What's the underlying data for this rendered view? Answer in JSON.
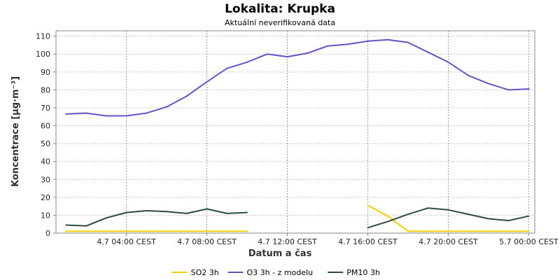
{
  "chart_data": {
    "type": "line",
    "title": "Lokalita: Krupka",
    "subtitle": "Aktuální neverifikovaná data",
    "xlabel": "Datum a čas",
    "ylabel": "Koncentrace [µg·m⁻³]",
    "ylim": [
      0,
      113
    ],
    "yticks": [
      0,
      10,
      20,
      30,
      40,
      50,
      60,
      70,
      80,
      90,
      100,
      110
    ],
    "xlim": [
      0.5,
      24.3
    ],
    "xticks": [
      {
        "x": 4,
        "label": "4.7 04:00 CEST"
      },
      {
        "x": 8,
        "label": "4.7 08:00 CEST"
      },
      {
        "x": 12,
        "label": "4.7 12:00 CEST"
      },
      {
        "x": 16,
        "label": "4.7 16:00 CEST"
      },
      {
        "x": 20,
        "label": "4.7 20:00 CEST"
      },
      {
        "x": 24,
        "label": "5.7 00:00 CEST"
      }
    ],
    "grid": true,
    "legend_position": "bottom",
    "series": [
      {
        "name": "SO2 3h",
        "color": "#f2d000",
        "segments": [
          {
            "x": [
              1,
              2,
              3,
              4,
              5,
              6,
              7,
              8,
              9,
              10
            ],
            "y": [
              1,
              1,
              1,
              1,
              1,
              1,
              1,
              1,
              1,
              1
            ]
          },
          {
            "x": [
              16,
              17,
              18,
              19,
              20,
              21,
              22,
              23,
              24
            ],
            "y": [
              15.5,
              9.5,
              1,
              1,
              1,
              1,
              1,
              1,
              1
            ]
          }
        ]
      },
      {
        "name": "O3 3h - z modelu",
        "color": "#6a51c8",
        "segments": [
          {
            "x": [
              1,
              2,
              3,
              4,
              5,
              6,
              7,
              8,
              9,
              10,
              11,
              12,
              13,
              14,
              15,
              16,
              17,
              18,
              19,
              20,
              21,
              22,
              23,
              24
            ],
            "y": [
              66.5,
              67,
              65.5,
              65.5,
              67,
              70.5,
              76.5,
              84.5,
              92,
              95.5,
              100,
              98.5,
              100.5,
              104.5,
              105.5,
              107.2,
              108,
              106.5,
              101,
              95.5,
              88,
              83.5,
              80,
              80.5
            ]
          }
        ]
      },
      {
        "name": "PM10 3h",
        "color": "#2f4a44",
        "segments": [
          {
            "x": [
              1,
              2,
              3,
              4,
              5,
              6,
              7,
              8,
              9,
              10
            ],
            "y": [
              4.5,
              4,
              8.5,
              11.5,
              12.5,
              12,
              11,
              13.5,
              11,
              11.5
            ]
          },
          {
            "x": [
              16,
              17,
              18,
              19,
              20,
              21,
              22,
              23,
              24
            ],
            "y": [
              3,
              6.5,
              10.5,
              14,
              13,
              10.5,
              8,
              7,
              9.5
            ]
          }
        ]
      }
    ]
  }
}
